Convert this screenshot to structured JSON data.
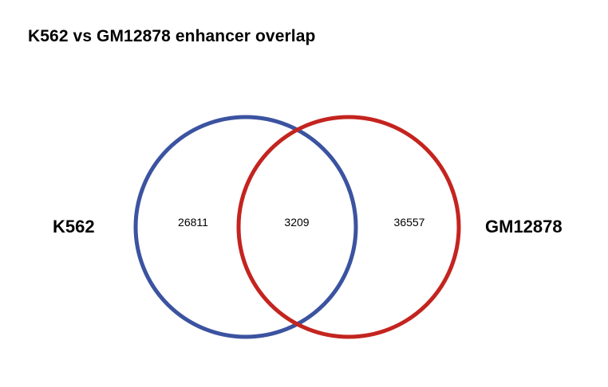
{
  "title": "K562 vs GM12878 enhancer overlap",
  "sets": [
    {
      "name": "K562",
      "color": "#3b53a0"
    },
    {
      "name": "GM12878",
      "color": "#c4241f"
    }
  ],
  "counts": {
    "left_only": "26811",
    "overlap": "3209",
    "right_only": "36557"
  }
}
